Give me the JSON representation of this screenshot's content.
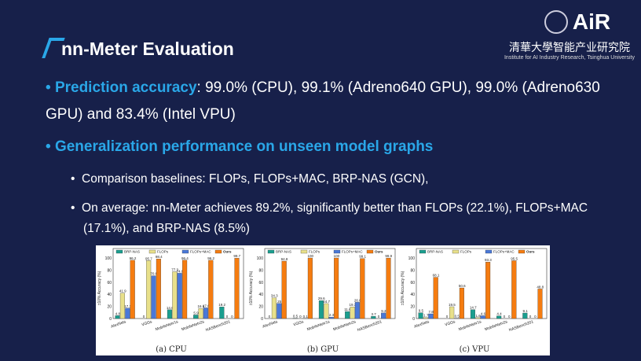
{
  "title": "nn-Meter Evaluation",
  "logo": {
    "brand": "AiR",
    "cn": "清華大學智能产业研究院",
    "en": "Institute for AI Industry Research, Tsinghua University"
  },
  "bullet1": {
    "label": "Prediction accuracy",
    "text": ": 99.0% (CPU), 99.1% (Adreno640 GPU), 99.0% (Adreno630 GPU) and 83.4% (Intel VPU)"
  },
  "bullet2": {
    "label": "Generalization performance on unseen model graphs"
  },
  "sub1": "Comparison baselines: FLOPs, FLOPs+MAC, BRP-NAS (GCN),",
  "sub2": "On average: nn-Meter achieves 89.2%, significantly better than FLOPs (22.1%), FLOPs+MAC (17.1%), and BRP-NAS (8.5%)",
  "chart_data": [
    {
      "type": "bar",
      "title": "(a) CPU",
      "ylabel": "±10% Accuracy (%)",
      "ylim": [
        0,
        100
      ],
      "categories": [
        "AlexNets",
        "VGGs",
        "MobileNetv1s",
        "MobileNetv2s",
        "NASBench201"
      ],
      "series": [
        {
          "name": "BRP-NAS",
          "color": "#1a9e8f",
          "values": [
            4.8,
            0,
            14.6,
            5.9,
            19.2
          ]
        },
        {
          "name": "FLOPs",
          "color": "#e8e08a",
          "values": [
            41.9,
            95.7,
            77.3,
            16.6,
            0
          ]
        },
        {
          "name": "FLOPs+MAC",
          "color": "#4a78d8",
          "values": [
            17.1,
            70.6,
            74.8,
            17.6,
            0
          ]
        },
        {
          "name": "Ours",
          "color": "#f57c10",
          "values": [
            96.2,
            98.4,
            96.4,
            96.2,
            99.7
          ]
        }
      ]
    },
    {
      "type": "bar",
      "title": "(b) GPU",
      "ylabel": "±10% Accuracy (%)",
      "ylim": [
        0,
        100
      ],
      "categories": [
        "AlexNets",
        "VGGs",
        "MobileNetv1s",
        "MobileNetv2s",
        "NASBench201"
      ],
      "series": [
        {
          "name": "BRP-NAS",
          "color": "#1a9e8f",
          "values": [
            0,
            0.5,
            29.6,
            11.6,
            3.7
          ]
        },
        {
          "name": "FLOPs",
          "color": "#e8e08a",
          "values": [
            34.3,
            0,
            24.7,
            19.3,
            0
          ]
        },
        {
          "name": "FLOPs+MAC",
          "color": "#4a78d8",
          "values": [
            25.0,
            0.1,
            2.3,
            26.8,
            9.2
          ]
        },
        {
          "name": "Ours",
          "color": "#f57c10",
          "values": [
            94.8,
            100,
            100,
            99.1,
            99.9
          ]
        }
      ]
    },
    {
      "type": "bar",
      "title": "(c) VPU",
      "ylabel": "±10% Accuracy (%)",
      "ylim": [
        0,
        100
      ],
      "categories": [
        "AlexNets",
        "VGGs",
        "MobileNetv1s",
        "MobileNetv2s",
        "NASBench201"
      ],
      "series": [
        {
          "name": "BRP-NAS",
          "color": "#1a9e8f",
          "values": [
            9.5,
            0,
            14.7,
            4.4,
            9.1
          ]
        },
        {
          "name": "FLOPs",
          "color": "#e8e08a",
          "values": [
            1.7,
            19.5,
            1.6,
            0,
            0
          ]
        },
        {
          "name": "FLOPs+MAC",
          "color": "#4a78d8",
          "values": [
            7.8,
            0.5,
            4.6,
            0,
            0
          ]
        },
        {
          "name": "Ours",
          "color": "#f57c10",
          "values": [
            68.1,
            50.6,
            93.3,
            95.5,
            48.8
          ]
        }
      ]
    }
  ]
}
